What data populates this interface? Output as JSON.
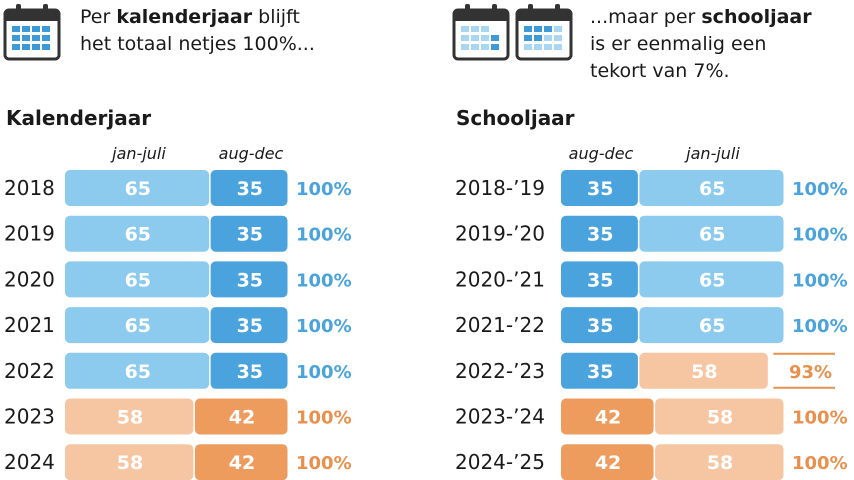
{
  "intro_left": {
    "pre": "Per ",
    "bold": "kalenderjaar",
    "mid": " blijft",
    "line2": "het totaal netjes 100%..."
  },
  "intro_right": {
    "line1_pre": "...maar per ",
    "line1_bold": "schooljaar",
    "line2": "is er eenmalig een",
    "line3": "tekort van 7%."
  },
  "colors": {
    "blue_dark": "#4aa3dc",
    "blue_light": "#8ccaee",
    "orange_dark": "#ee9b5e",
    "orange_light": "#f6c6a2",
    "total_blue": "#4aa3dc",
    "total_orange": "#e8904c",
    "icon_blue": "#3d9ad6",
    "icon_dark": "#333333"
  },
  "icons": [
    "calendar-icon",
    "calendar-icon",
    "calendar-icon"
  ],
  "chart_data": [
    {
      "type": "bar",
      "stacked": true,
      "title": "Kalenderjaar",
      "columns": [
        "jan-juli",
        "aug-dec"
      ],
      "categories": [
        "2018",
        "2019",
        "2020",
        "2021",
        "2022",
        "2023",
        "2024"
      ],
      "series": [
        {
          "name": "jan-juli",
          "values": [
            65,
            65,
            65,
            65,
            65,
            58,
            58
          ]
        },
        {
          "name": "aug-dec",
          "values": [
            35,
            35,
            35,
            35,
            35,
            42,
            42
          ]
        }
      ],
      "totals": [
        "100%",
        "100%",
        "100%",
        "100%",
        "100%",
        "100%",
        "100%"
      ]
    },
    {
      "type": "bar",
      "stacked": true,
      "title": "Schooljaar",
      "columns": [
        "aug-dec",
        "jan-juli"
      ],
      "categories": [
        "2018-’19",
        "2019-’20",
        "2020-’21",
        "2021-’22",
        "2022-’23",
        "2023-’24",
        "2024-’25"
      ],
      "series": [
        {
          "name": "aug-dec",
          "values": [
            35,
            35,
            35,
            35,
            35,
            42,
            42
          ]
        },
        {
          "name": "jan-juli",
          "values": [
            65,
            65,
            65,
            65,
            58,
            58,
            58
          ]
        }
      ],
      "totals": [
        "100%",
        "100%",
        "100%",
        "100%",
        "93%",
        "100%",
        "100%"
      ]
    }
  ]
}
